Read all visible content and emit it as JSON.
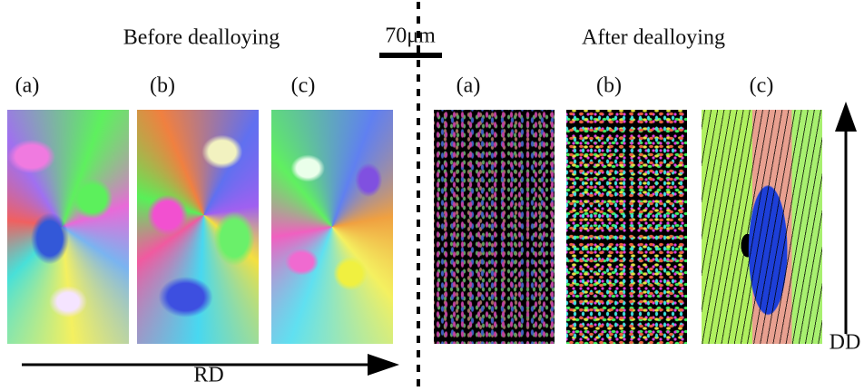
{
  "before": {
    "title": "Before dealloying",
    "panels": [
      "(a)",
      "(b)",
      "(c)"
    ]
  },
  "after": {
    "title": "After dealloying",
    "panels": [
      "(a)",
      "(b)",
      "(c)"
    ]
  },
  "scale_bar": "70μm",
  "axes": {
    "horizontal": "RD",
    "vertical": "DD"
  }
}
